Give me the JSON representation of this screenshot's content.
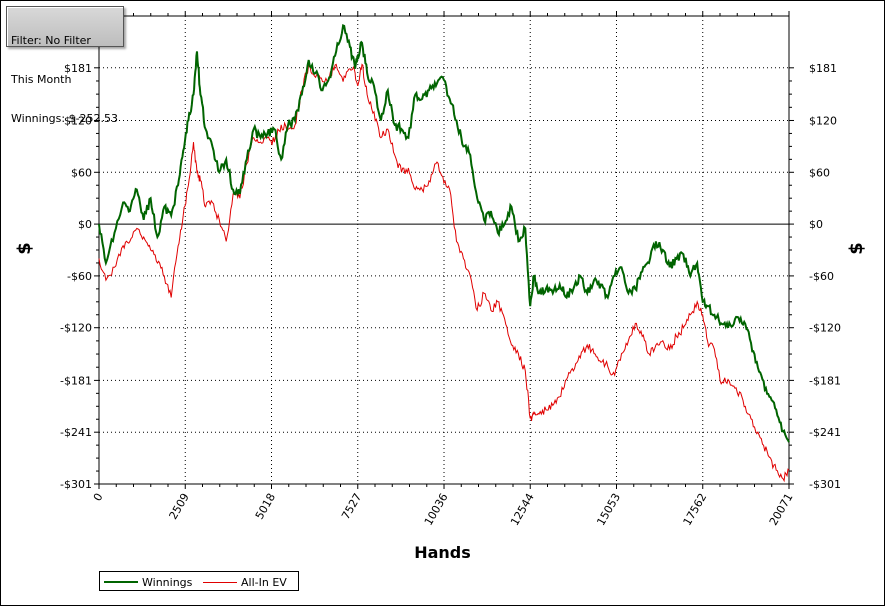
{
  "filter_box": {
    "line1": "Filter: No Filter",
    "line2": "This Month",
    "line3": "Winnings: $-252.53"
  },
  "colors": {
    "winnings": "#006400",
    "allin_ev": "#e00000",
    "zero_line": "#000000",
    "grid": "#000000"
  },
  "chart_data": {
    "type": "line",
    "title": "",
    "xlabel": "Hands",
    "ylabel": "$",
    "xlim": [
      0,
      20071
    ],
    "ylim": [
      -301,
      241
    ],
    "x_ticks": [
      0,
      2509,
      5018,
      7527,
      10036,
      12544,
      15053,
      17562,
      20071
    ],
    "y_ticks": [
      -301,
      -241,
      -181,
      -120,
      -60,
      0,
      60,
      120,
      181
    ],
    "y_tick_labels": [
      "-$301",
      "-$241",
      "-$181",
      "-$120",
      "-$60",
      "$0",
      "$60",
      "$120",
      "$181"
    ],
    "grid": true,
    "legend_position": "bottom-left",
    "series": [
      {
        "name": "Winnings",
        "color": "#006400",
        "x": [
          0,
          200,
          450,
          700,
          900,
          1100,
          1300,
          1500,
          1700,
          1900,
          2100,
          2300,
          2450,
          2600,
          2750,
          2850,
          2950,
          3100,
          3300,
          3500,
          3700,
          3900,
          4100,
          4300,
          4500,
          4700,
          4900,
          5100,
          5300,
          5500,
          5700,
          5900,
          6100,
          6300,
          6500,
          6700,
          6900,
          7100,
          7300,
          7450,
          7527,
          7650,
          7800,
          8000,
          8200,
          8400,
          8600,
          8800,
          9000,
          9200,
          9400,
          9600,
          9800,
          10000,
          10200,
          10400,
          10600,
          10800,
          11000,
          11200,
          11400,
          11600,
          11800,
          12000,
          12200,
          12400,
          12544,
          12650,
          12800,
          13000,
          13200,
          13400,
          13600,
          13800,
          14000,
          14200,
          14400,
          14600,
          14800,
          15000,
          15200,
          15400,
          15600,
          15800,
          16000,
          16200,
          16400,
          16600,
          16800,
          17000,
          17200,
          17400,
          17562,
          17700,
          17900,
          18100,
          18300,
          18500,
          18700,
          18900,
          19100,
          19300,
          19500,
          19700,
          19900,
          20071
        ],
        "y": [
          0,
          -45,
          -10,
          25,
          15,
          40,
          5,
          30,
          -15,
          20,
          10,
          45,
          85,
          120,
          150,
          200,
          150,
          110,
          90,
          60,
          75,
          40,
          35,
          75,
          110,
          100,
          105,
          110,
          75,
          115,
          120,
          150,
          190,
          175,
          155,
          170,
          200,
          230,
          205,
          180,
          195,
          210,
          175,
          160,
          120,
          155,
          115,
          110,
          100,
          150,
          145,
          155,
          160,
          170,
          145,
          120,
          90,
          80,
          30,
          5,
          15,
          -10,
          0,
          20,
          -20,
          -5,
          -95,
          -60,
          -80,
          -75,
          -80,
          -70,
          -85,
          -75,
          -60,
          -80,
          -65,
          -70,
          -85,
          -60,
          -50,
          -80,
          -75,
          -55,
          -45,
          -20,
          -30,
          -50,
          -40,
          -35,
          -60,
          -45,
          -90,
          -95,
          -105,
          -115,
          -120,
          -110,
          -115,
          -125,
          -160,
          -180,
          -200,
          -215,
          -240,
          -252.53
        ]
      },
      {
        "name": "All-In EV",
        "color": "#e00000",
        "x": [
          0,
          200,
          450,
          700,
          900,
          1100,
          1300,
          1500,
          1700,
          1900,
          2100,
          2300,
          2450,
          2600,
          2750,
          2850,
          2950,
          3100,
          3300,
          3500,
          3700,
          3900,
          4100,
          4300,
          4500,
          4700,
          4900,
          5100,
          5300,
          5500,
          5700,
          5900,
          6100,
          6300,
          6500,
          6700,
          6900,
          7100,
          7300,
          7450,
          7527,
          7650,
          7800,
          8000,
          8200,
          8400,
          8600,
          8800,
          9000,
          9200,
          9400,
          9600,
          9800,
          10000,
          10200,
          10400,
          10600,
          10800,
          11000,
          11200,
          11400,
          11600,
          11800,
          12000,
          12200,
          12400,
          12544,
          12650,
          12800,
          13000,
          13200,
          13400,
          13600,
          13800,
          14000,
          14200,
          14400,
          14600,
          14800,
          15000,
          15200,
          15400,
          15600,
          15800,
          16000,
          16200,
          16400,
          16600,
          16800,
          17000,
          17200,
          17400,
          17562,
          17700,
          17900,
          18100,
          18300,
          18500,
          18700,
          18900,
          19100,
          19300,
          19500,
          19700,
          19900,
          20071
        ],
        "y": [
          -40,
          -65,
          -50,
          -25,
          -20,
          -5,
          -15,
          -30,
          -45,
          -60,
          -85,
          -25,
          10,
          45,
          95,
          60,
          50,
          20,
          25,
          5,
          -20,
          35,
          30,
          70,
          100,
          95,
          100,
          95,
          115,
          110,
          115,
          155,
          185,
          170,
          165,
          170,
          185,
          165,
          180,
          175,
          160,
          185,
          150,
          130,
          100,
          110,
          80,
          60,
          65,
          40,
          40,
          50,
          70,
          55,
          40,
          -20,
          -40,
          -60,
          -100,
          -80,
          -100,
          -90,
          -110,
          -140,
          -150,
          -170,
          -225,
          -220,
          -220,
          -215,
          -210,
          -200,
          -180,
          -170,
          -155,
          -140,
          -150,
          -160,
          -165,
          -175,
          -150,
          -135,
          -115,
          -130,
          -150,
          -140,
          -135,
          -145,
          -130,
          -120,
          -105,
          -90,
          -105,
          -135,
          -145,
          -185,
          -180,
          -190,
          -200,
          -220,
          -240,
          -255,
          -270,
          -285,
          -295,
          -285
        ]
      }
    ]
  },
  "legend": {
    "winnings_label": "Winnings",
    "allin_label": "All-In EV"
  }
}
